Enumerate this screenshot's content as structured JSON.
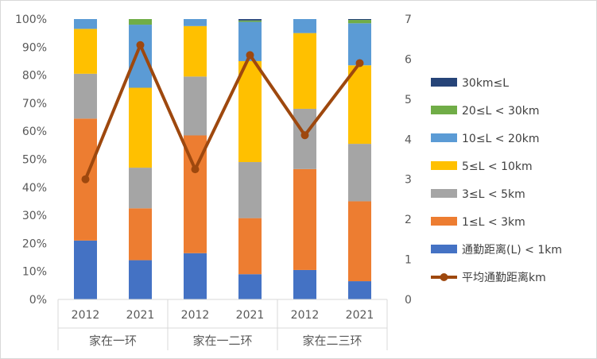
{
  "chart_data": {
    "type": "bar",
    "stacked": true,
    "percent_stacked": true,
    "groups": [
      "家在一环",
      "家在一二环",
      "家在二三环"
    ],
    "categories": [
      "2012",
      "2021",
      "2012",
      "2021",
      "2012",
      "2021"
    ],
    "series": [
      {
        "name": "通勤距离(L) < 1km",
        "color": "#4472C4",
        "values": [
          0.21,
          0.14,
          0.165,
          0.09,
          0.105,
          0.065
        ]
      },
      {
        "name": "1≤L < 3km",
        "color": "#ED7D31",
        "values": [
          0.435,
          0.185,
          0.42,
          0.2,
          0.36,
          0.285
        ]
      },
      {
        "name": "3≤L < 5km",
        "color": "#A5A5A5",
        "values": [
          0.16,
          0.145,
          0.21,
          0.2,
          0.215,
          0.205
        ]
      },
      {
        "name": "5≤L < 10km",
        "color": "#FFC000",
        "values": [
          0.16,
          0.285,
          0.18,
          0.36,
          0.27,
          0.28
        ]
      },
      {
        "name": "10≤L < 20km",
        "color": "#5B9BD5",
        "values": [
          0.035,
          0.225,
          0.025,
          0.14,
          0.05,
          0.15
        ]
      },
      {
        "name": "20≤L < 30km",
        "color": "#70AD47",
        "values": [
          0.0,
          0.02,
          0.0,
          0.005,
          0.0,
          0.012
        ]
      },
      {
        "name": "30km≤L",
        "color": "#264478",
        "values": [
          0.0,
          0.0,
          0.0,
          0.005,
          0.0,
          0.003
        ]
      }
    ],
    "line_series": {
      "name": "平均通勤距离km",
      "color": "#9E480E",
      "values": [
        3.0,
        6.35,
        3.25,
        6.1,
        4.1,
        5.9
      ]
    },
    "y_left": {
      "ticks": [
        "0%",
        "10%",
        "20%",
        "30%",
        "40%",
        "50%",
        "60%",
        "70%",
        "80%",
        "90%",
        "100%"
      ],
      "range": [
        0,
        1
      ]
    },
    "y_right": {
      "ticks": [
        "0",
        "1",
        "2",
        "3",
        "4",
        "5",
        "6",
        "7"
      ],
      "range": [
        0,
        7
      ]
    },
    "legend": {
      "placement": "right",
      "order": [
        "30km≤L",
        "20≤L < 30km",
        "10≤L < 20km",
        "5≤L < 10km",
        "3≤L < 5km",
        "1≤L < 3km",
        "通勤距离(L) < 1km",
        "平均通勤距离km"
      ]
    },
    "grid": false
  }
}
